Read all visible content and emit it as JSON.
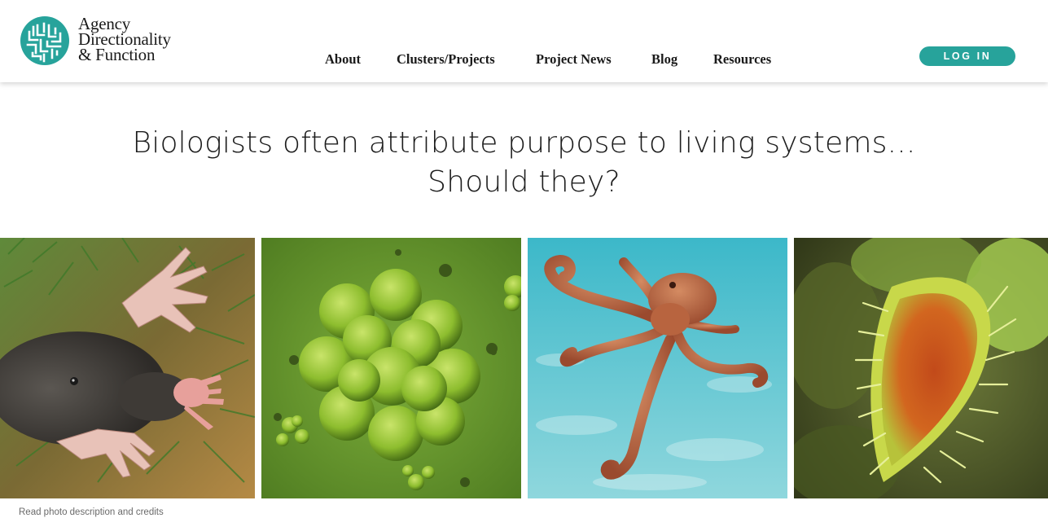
{
  "brand": {
    "line1": "Agency",
    "line2": "Directionality",
    "line3": "& Function",
    "accent_color": "#27a39b"
  },
  "nav": {
    "items": [
      {
        "label": "About"
      },
      {
        "label": "Clusters/Projects"
      },
      {
        "label": "Project News"
      },
      {
        "label": "Blog"
      },
      {
        "label": "Resources"
      }
    ]
  },
  "header": {
    "login_label": "LOG IN"
  },
  "hero": {
    "line1": "Biologists often attribute purpose to living systems...",
    "line2": "Should they?"
  },
  "photos": [
    {
      "subject": "star-nosed mole"
    },
    {
      "subject": "green cell cluster"
    },
    {
      "subject": "octopus"
    },
    {
      "subject": "venus flytrap"
    }
  ],
  "footer": {
    "credits_link": "Read photo description and credits"
  }
}
